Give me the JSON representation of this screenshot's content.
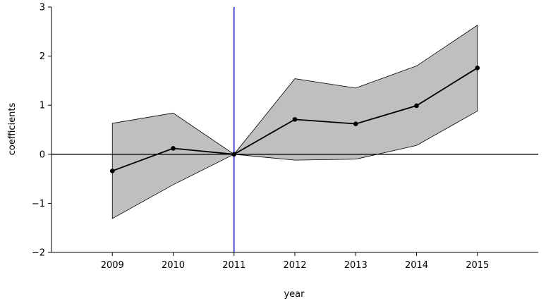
{
  "chart_data": {
    "type": "line",
    "title": "",
    "xlabel": "year",
    "ylabel": "coefficients",
    "x": [
      2009,
      2010,
      2011,
      2012,
      2013,
      2014,
      2015
    ],
    "x_tick_labels": [
      "2009",
      "2010",
      "2011",
      "2012",
      "2013",
      "2014",
      "2015"
    ],
    "xlim": [
      2008,
      2016
    ],
    "ylim": [
      -2,
      3
    ],
    "y_ticks": [
      -2,
      -1,
      0,
      1,
      2,
      3
    ],
    "y_tick_labels": [
      "−2",
      "−1",
      "0",
      "1",
      "2",
      "3"
    ],
    "series": [
      {
        "values": [
          -0.34,
          0.12,
          0.0,
          0.71,
          0.62,
          0.99,
          1.76
        ],
        "lower": [
          -1.31,
          -0.62,
          0.0,
          -0.12,
          -0.1,
          0.18,
          0.88
        ],
        "upper": [
          0.63,
          0.84,
          0.0,
          1.54,
          1.35,
          1.8,
          2.63
        ]
      }
    ],
    "reference_lines": {
      "horizontal_y": 0,
      "vertical_x": 2011
    },
    "grid": false,
    "legend": "none",
    "colors": {
      "band_fill": "#c0bfc0",
      "band_edge": "#000000",
      "line": "#000000",
      "vline": "#1a1acc",
      "hline": "#000000"
    }
  }
}
